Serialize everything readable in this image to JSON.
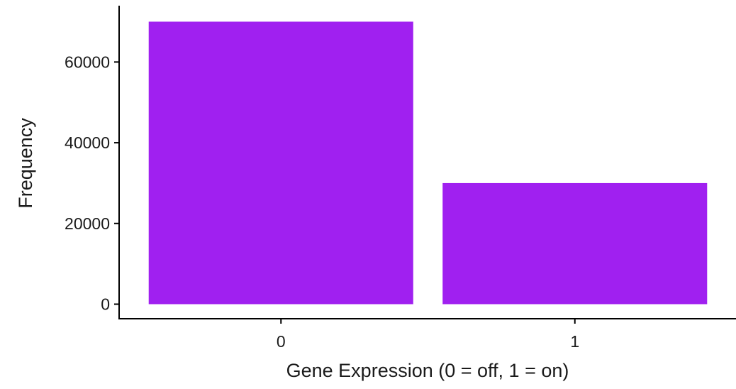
{
  "chart_data": {
    "type": "bar",
    "categories": [
      "0",
      "1"
    ],
    "values": [
      70000,
      30000
    ],
    "xlabel": "Gene Expression (0 = off, 1 = on)",
    "ylabel": "Frequency",
    "ylim": [
      0,
      73500
    ],
    "yticks": [
      0,
      20000,
      40000,
      60000
    ],
    "grid": false,
    "legend": "none",
    "bar_color": "#A020F0"
  }
}
